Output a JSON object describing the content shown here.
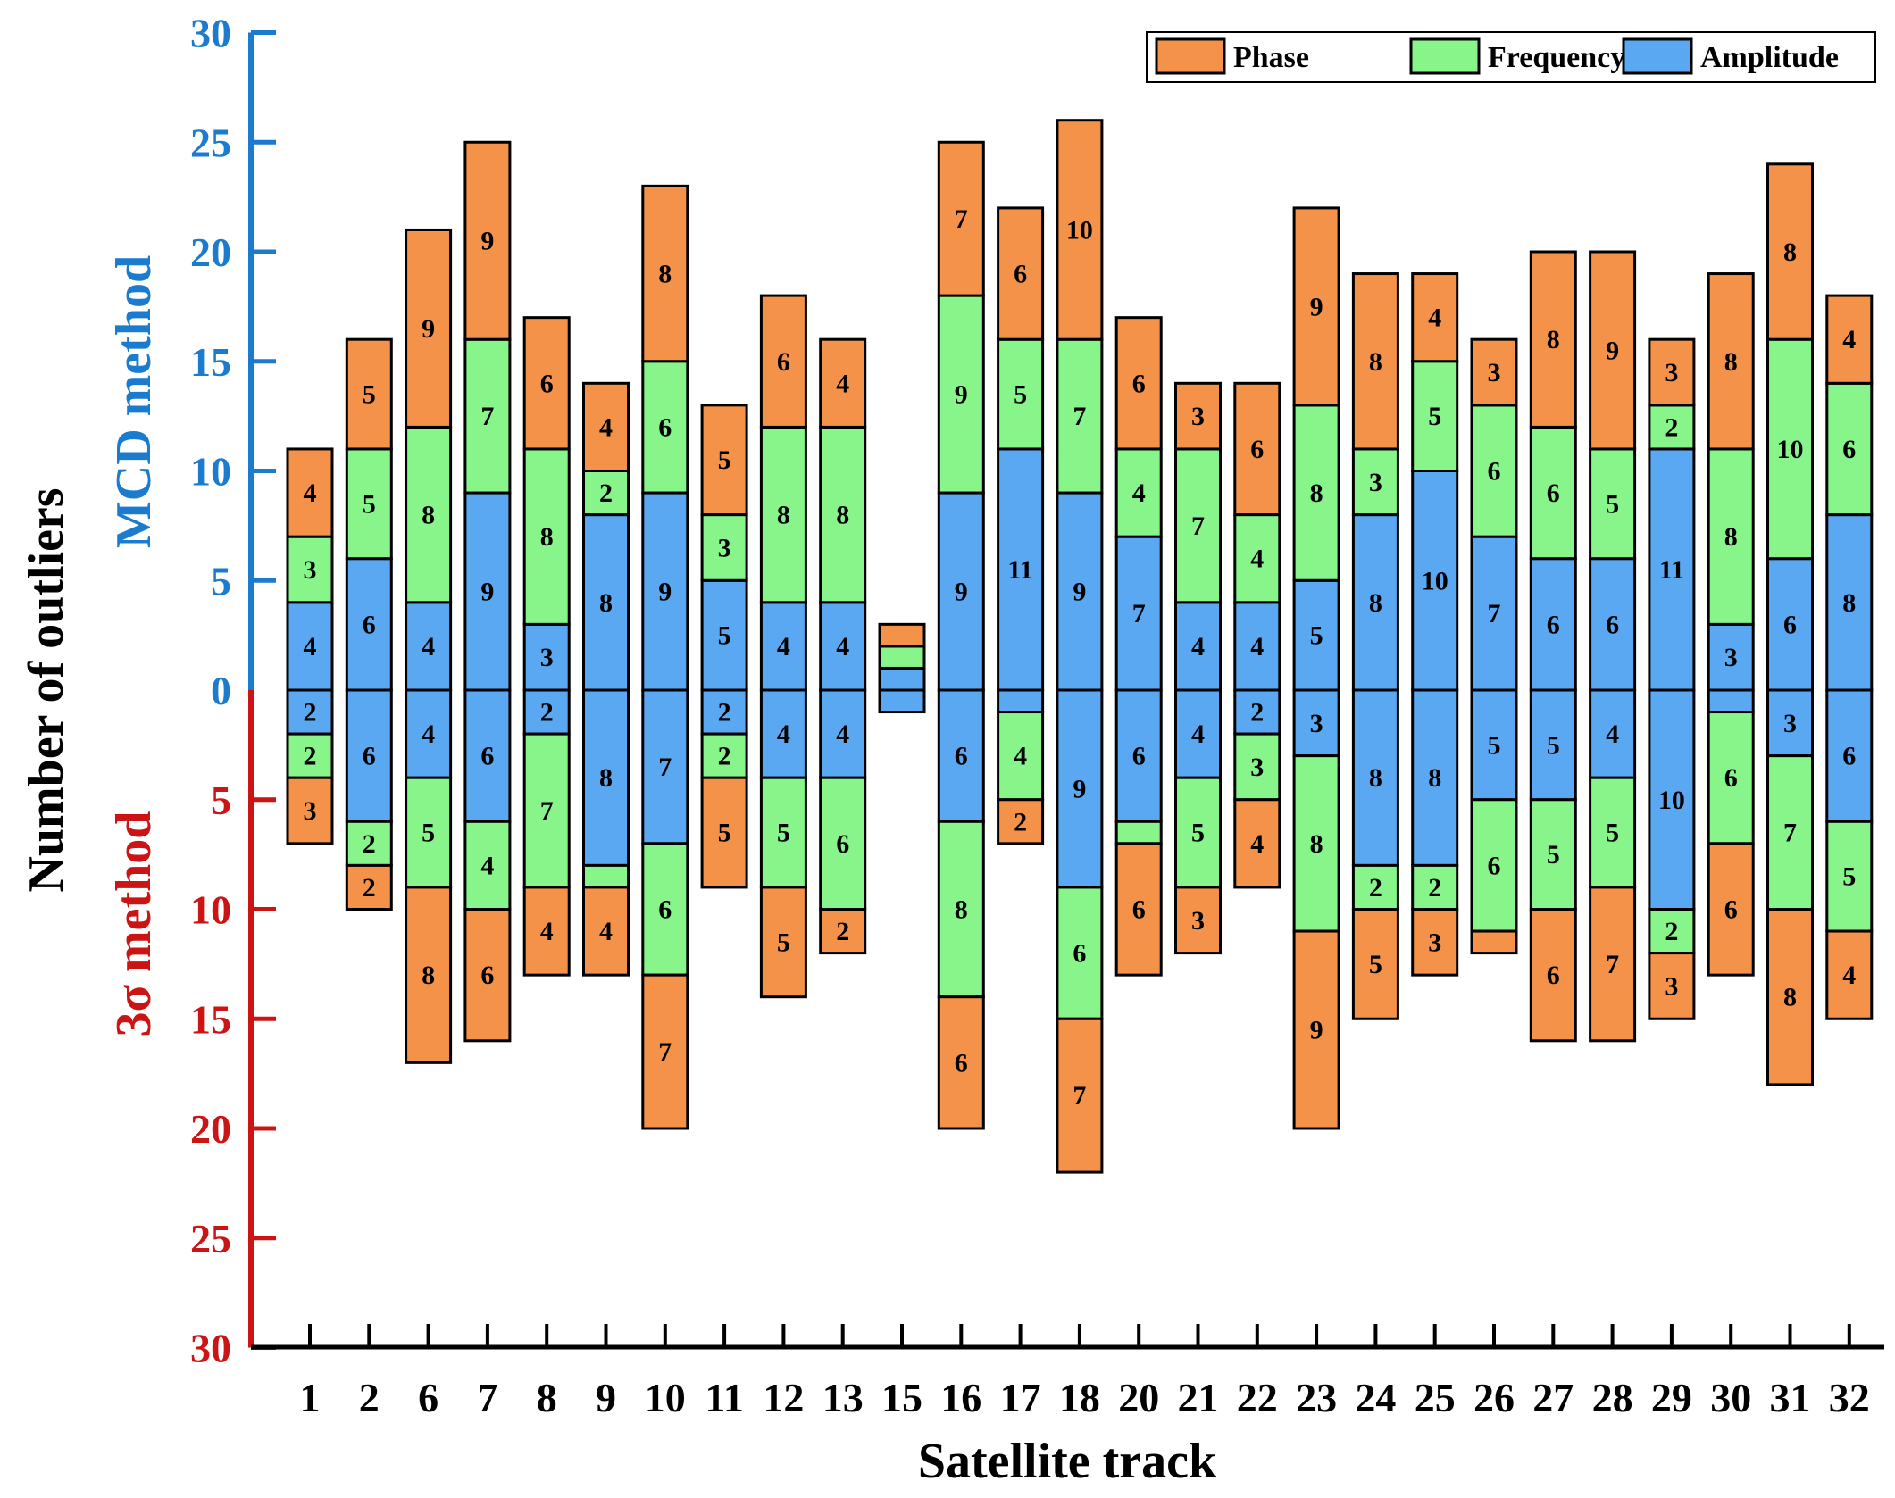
{
  "chart_data": {
    "type": "bar",
    "subtype": "mirrored-stacked",
    "xlabel": "Satellite track",
    "ylabel": "Number of outliers",
    "upper_axis_label": "MCD method",
    "lower_axis_label": "3σ method",
    "ylim_upper": [
      0,
      30
    ],
    "ylim_lower": [
      0,
      30
    ],
    "yticks": [
      0,
      5,
      10,
      15,
      20,
      25,
      30
    ],
    "categories": [
      "1",
      "2",
      "6",
      "7",
      "8",
      "9",
      "10",
      "11",
      "12",
      "13",
      "15",
      "16",
      "17",
      "18",
      "20",
      "21",
      "22",
      "23",
      "24",
      "25",
      "26",
      "27",
      "28",
      "29",
      "30",
      "31",
      "32"
    ],
    "series_order": [
      "Amplitude",
      "Frequency",
      "Phase"
    ],
    "colors": {
      "Phase": "#F4924A",
      "Frequency": "#87F58A",
      "Amplitude": "#5AA7F2",
      "upper_axis": "#1B7BCF",
      "lower_axis": "#CC1414"
    },
    "legend": {
      "position": "top-right",
      "entries": [
        "Phase",
        "Frequency",
        "Amplitude"
      ]
    },
    "upper": {
      "Amplitude": [
        4,
        6,
        4,
        9,
        3,
        8,
        9,
        5,
        4,
        4,
        1,
        9,
        11,
        9,
        7,
        4,
        4,
        5,
        8,
        10,
        7,
        6,
        6,
        11,
        3,
        6,
        8
      ],
      "Frequency": [
        3,
        5,
        8,
        7,
        8,
        2,
        6,
        3,
        8,
        8,
        1,
        9,
        5,
        7,
        4,
        7,
        4,
        8,
        3,
        5,
        6,
        6,
        5,
        2,
        8,
        10,
        6
      ],
      "Phase": [
        4,
        5,
        9,
        9,
        6,
        4,
        8,
        5,
        6,
        4,
        1,
        7,
        6,
        10,
        6,
        3,
        6,
        9,
        8,
        4,
        3,
        8,
        9,
        3,
        8,
        8,
        4
      ]
    },
    "lower": {
      "Amplitude": [
        2,
        6,
        4,
        6,
        2,
        8,
        7,
        2,
        4,
        4,
        1,
        6,
        1,
        9,
        6,
        4,
        2,
        3,
        8,
        8,
        5,
        5,
        4,
        10,
        1,
        3,
        6
      ],
      "Frequency": [
        2,
        2,
        5,
        4,
        7,
        1,
        6,
        2,
        5,
        6,
        0,
        8,
        4,
        6,
        1,
        5,
        3,
        8,
        2,
        2,
        6,
        5,
        5,
        2,
        6,
        7,
        5
      ],
      "Phase": [
        3,
        2,
        8,
        6,
        4,
        4,
        7,
        5,
        5,
        2,
        0,
        6,
        2,
        7,
        6,
        3,
        4,
        9,
        5,
        3,
        1,
        6,
        7,
        3,
        6,
        8,
        4
      ]
    }
  }
}
